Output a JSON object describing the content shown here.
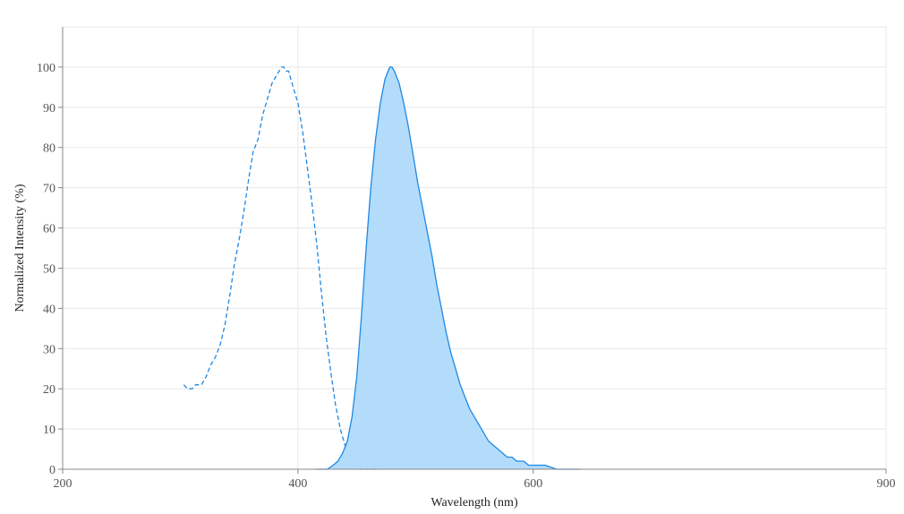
{
  "chart_data": {
    "type": "area",
    "title": "",
    "xlabel": "Wavelength (nm)",
    "ylabel": "Normalized Intensity (%)",
    "xlim": [
      200,
      900
    ],
    "ylim": [
      0,
      110
    ],
    "x_ticks": [
      200,
      400,
      600,
      900
    ],
    "x_tick_labels": [
      "200",
      "400",
      "600",
      "900"
    ],
    "y_ticks": [
      0,
      10,
      20,
      30,
      40,
      50,
      60,
      70,
      80,
      90,
      100
    ],
    "y_tick_labels": [
      "0",
      "10",
      "20",
      "30",
      "40",
      "50",
      "60",
      "70",
      "80",
      "90",
      "100"
    ],
    "grid": true,
    "legend": "none",
    "colors": {
      "line": "#1e88e5",
      "fill": "#b3dcfb",
      "grid": "#e8e8e8",
      "axis": "#888888"
    },
    "series": [
      {
        "style": "dashed",
        "filled": false,
        "points": [
          [
            303,
            21
          ],
          [
            306,
            20
          ],
          [
            310,
            20
          ],
          [
            313,
            21
          ],
          [
            318,
            21
          ],
          [
            322,
            23
          ],
          [
            326,
            26
          ],
          [
            330,
            28
          ],
          [
            334,
            31
          ],
          [
            338,
            36
          ],
          [
            342,
            43
          ],
          [
            346,
            51
          ],
          [
            350,
            57
          ],
          [
            354,
            64
          ],
          [
            358,
            72
          ],
          [
            362,
            79
          ],
          [
            366,
            82
          ],
          [
            370,
            88
          ],
          [
            374,
            92
          ],
          [
            378,
            96
          ],
          [
            382,
            98
          ],
          [
            386,
            100
          ],
          [
            388,
            100
          ],
          [
            390,
            99
          ],
          [
            392,
            99
          ],
          [
            396,
            95
          ],
          [
            400,
            91
          ],
          [
            404,
            84
          ],
          [
            408,
            75
          ],
          [
            412,
            66
          ],
          [
            416,
            56
          ],
          [
            420,
            44
          ],
          [
            424,
            33
          ],
          [
            428,
            24
          ],
          [
            432,
            16
          ],
          [
            436,
            10
          ],
          [
            440,
            6
          ],
          [
            444,
            3
          ],
          [
            448,
            1
          ],
          [
            452,
            0
          ],
          [
            470,
            0
          ]
        ]
      },
      {
        "style": "solid",
        "filled": true,
        "points": [
          [
            415,
            0
          ],
          [
            420,
            0
          ],
          [
            425,
            0
          ],
          [
            430,
            1
          ],
          [
            434,
            2
          ],
          [
            438,
            4
          ],
          [
            442,
            7
          ],
          [
            446,
            13
          ],
          [
            450,
            23
          ],
          [
            454,
            38
          ],
          [
            458,
            55
          ],
          [
            462,
            70
          ],
          [
            466,
            82
          ],
          [
            470,
            91
          ],
          [
            474,
            97
          ],
          [
            478,
            100
          ],
          [
            480,
            100
          ],
          [
            482,
            99
          ],
          [
            486,
            96
          ],
          [
            490,
            91
          ],
          [
            494,
            85
          ],
          [
            498,
            78
          ],
          [
            502,
            71
          ],
          [
            506,
            65
          ],
          [
            510,
            59
          ],
          [
            514,
            53
          ],
          [
            518,
            46
          ],
          [
            522,
            40
          ],
          [
            526,
            34
          ],
          [
            530,
            29
          ],
          [
            534,
            25
          ],
          [
            538,
            21
          ],
          [
            542,
            18
          ],
          [
            546,
            15
          ],
          [
            550,
            13
          ],
          [
            554,
            11
          ],
          [
            558,
            9
          ],
          [
            562,
            7
          ],
          [
            566,
            6
          ],
          [
            570,
            5
          ],
          [
            574,
            4
          ],
          [
            578,
            3
          ],
          [
            582,
            3
          ],
          [
            586,
            2
          ],
          [
            592,
            2
          ],
          [
            596,
            1
          ],
          [
            602,
            1
          ],
          [
            610,
            1
          ],
          [
            620,
            0
          ],
          [
            640,
            0
          ]
        ]
      }
    ]
  }
}
